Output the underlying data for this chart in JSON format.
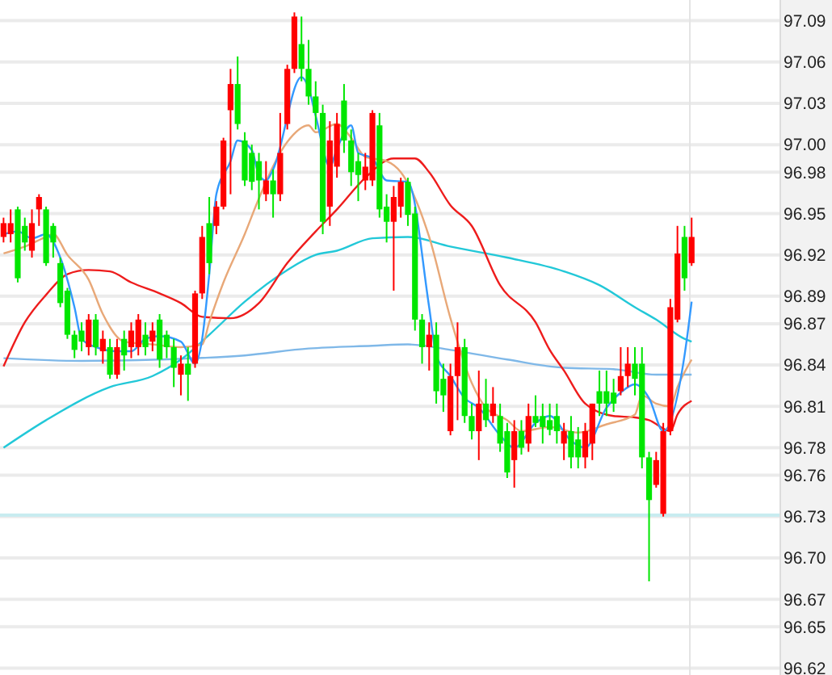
{
  "chart_data": {
    "type": "candlestick",
    "categories": [
      null,
      null,
      null,
      null,
      null,
      null,
      null,
      null,
      null,
      null,
      null,
      null,
      null,
      null,
      null,
      null,
      null,
      null,
      null,
      null,
      null,
      null,
      null,
      null,
      null,
      null,
      null,
      null,
      null,
      null,
      null,
      null,
      null,
      null,
      null,
      null,
      null,
      null,
      null,
      null,
      null,
      null,
      null,
      null,
      null,
      null,
      null,
      null,
      null,
      null,
      null,
      null,
      null,
      null,
      null,
      null,
      null,
      null,
      null,
      null,
      null,
      null,
      null,
      null,
      null,
      null,
      null,
      null,
      null,
      null,
      null,
      null,
      null,
      null,
      null,
      null,
      null,
      null,
      null,
      null,
      null,
      null,
      null,
      null,
      null,
      null,
      null,
      null,
      null,
      null,
      null,
      null,
      null,
      null,
      null,
      null,
      null,
      null,
      null,
      null,
      null,
      null,
      null,
      null,
      null,
      null,
      null,
      null,
      null,
      null
    ],
    "ohlc": [
      [
        96.933,
        96.947,
        96.929,
        96.943
      ],
      [
        96.935,
        96.953,
        96.929,
        96.943
      ],
      [
        96.953,
        96.955,
        96.9,
        96.903
      ],
      [
        96.941,
        96.947,
        96.923,
        96.929
      ],
      [
        96.923,
        96.953,
        96.918,
        96.943
      ],
      [
        96.953,
        96.964,
        96.941,
        96.962
      ],
      [
        96.953,
        96.955,
        96.912,
        96.914
      ],
      [
        96.941,
        96.943,
        96.918,
        96.929
      ],
      [
        96.914,
        96.918,
        96.882,
        96.885
      ],
      [
        96.894,
        96.896,
        96.859,
        96.862
      ],
      [
        96.862,
        96.865,
        96.845,
        96.851
      ],
      [
        96.865,
        96.871,
        96.85,
        96.857
      ],
      [
        96.853,
        96.877,
        96.847,
        96.873
      ],
      [
        96.873,
        96.877,
        96.847,
        96.853
      ],
      [
        96.85,
        96.865,
        96.841,
        96.859
      ],
      [
        96.853,
        96.859,
        96.83,
        96.833
      ],
      [
        96.833,
        96.859,
        96.83,
        96.853
      ],
      [
        96.859,
        96.865,
        96.836,
        96.847
      ],
      [
        96.853,
        96.871,
        96.845,
        96.865
      ],
      [
        96.853,
        96.877,
        96.847,
        96.873
      ],
      [
        96.862,
        96.871,
        96.847,
        96.853
      ],
      [
        96.857,
        96.871,
        96.85,
        96.865
      ],
      [
        96.873,
        96.877,
        96.838,
        96.844
      ],
      [
        96.862,
        96.865,
        96.845,
        96.853
      ],
      [
        96.853,
        96.859,
        96.824,
        96.838
      ],
      [
        96.833,
        96.847,
        96.818,
        96.841
      ],
      [
        96.841,
        96.853,
        96.814,
        96.833
      ],
      [
        96.841,
        96.894,
        96.838,
        96.892
      ],
      [
        96.892,
        96.941,
        96.888,
        96.933
      ],
      [
        96.943,
        96.962,
        96.906,
        96.914
      ],
      [
        96.941,
        96.959,
        96.935,
        96.955
      ],
      [
        96.955,
        97.005,
        96.953,
        97.003
      ],
      [
        97.025,
        97.055,
        96.964,
        97.044
      ],
      [
        97.044,
        97.064,
        97.011,
        97.015
      ],
      [
        97.003,
        97.009,
        96.97,
        96.974
      ],
      [
        96.994,
        97.0,
        96.967,
        96.973
      ],
      [
        96.988,
        96.994,
        96.953,
        96.974
      ],
      [
        96.964,
        96.988,
        96.959,
        96.974
      ],
      [
        96.974,
        96.982,
        96.947,
        96.964
      ],
      [
        96.964,
        97.023,
        96.959,
        96.994
      ],
      [
        97.015,
        97.058,
        97.011,
        97.055
      ],
      [
        97.055,
        97.096,
        97.052,
        97.093
      ],
      [
        97.073,
        97.093,
        97.046,
        97.055
      ],
      [
        97.055,
        97.076,
        97.029,
        97.035
      ],
      [
        97.035,
        97.046,
        97.011,
        97.023
      ],
      [
        97.023,
        97.029,
        96.935,
        96.944
      ],
      [
        96.955,
        97.017,
        96.941,
        97.003
      ],
      [
        96.984,
        97.023,
        96.976,
        97.015
      ],
      [
        97.032,
        97.044,
        96.994,
        97.003
      ],
      [
        97.003,
        97.011,
        96.97,
        96.98
      ],
      [
        96.988,
        96.994,
        96.959,
        96.978
      ],
      [
        96.974,
        96.994,
        96.967,
        96.984
      ],
      [
        96.974,
        97.025,
        96.97,
        97.023
      ],
      [
        97.014,
        97.023,
        96.947,
        96.953
      ],
      [
        96.955,
        96.964,
        96.929,
        96.944
      ],
      [
        96.944,
        96.97,
        96.894,
        96.962
      ],
      [
        96.955,
        96.976,
        96.947,
        96.973
      ],
      [
        96.973,
        96.976,
        96.941,
        96.949
      ],
      [
        96.95,
        96.955,
        96.865,
        96.873
      ],
      [
        96.873,
        96.877,
        96.841,
        96.853
      ],
      [
        96.853,
        96.871,
        96.836,
        96.862
      ],
      [
        96.862,
        96.871,
        96.812,
        96.821
      ],
      [
        96.83,
        96.841,
        96.806,
        96.818
      ],
      [
        96.792,
        96.841,
        96.789,
        96.832
      ],
      [
        96.832,
        96.871,
        96.8,
        96.853
      ],
      [
        96.853,
        96.859,
        96.798,
        96.803
      ],
      [
        96.803,
        96.812,
        96.786,
        96.792
      ],
      [
        96.792,
        96.836,
        96.771,
        96.812
      ],
      [
        96.812,
        96.83,
        96.795,
        96.8
      ],
      [
        96.803,
        96.824,
        96.798,
        96.812
      ],
      [
        96.803,
        96.812,
        96.777,
        96.783
      ],
      [
        96.792,
        96.798,
        96.758,
        96.762
      ],
      [
        96.771,
        96.8,
        96.751,
        96.792
      ],
      [
        96.792,
        96.8,
        96.775,
        96.78
      ],
      [
        96.783,
        96.812,
        96.777,
        96.803
      ],
      [
        96.803,
        96.818,
        96.795,
        96.798
      ],
      [
        96.803,
        96.812,
        96.783,
        96.795
      ],
      [
        96.8,
        96.812,
        96.789,
        96.793
      ],
      [
        96.803,
        96.812,
        96.783,
        96.792
      ],
      [
        96.783,
        96.798,
        96.771,
        96.792
      ],
      [
        96.792,
        96.803,
        96.765,
        96.773
      ],
      [
        96.786,
        96.795,
        96.765,
        96.773
      ],
      [
        96.773,
        96.798,
        96.765,
        96.792
      ],
      [
        96.783,
        96.812,
        96.771,
        96.812
      ],
      [
        96.821,
        96.836,
        96.803,
        96.812
      ],
      [
        96.821,
        96.836,
        96.803,
        96.812
      ],
      [
        96.82,
        96.83,
        96.806,
        96.812
      ],
      [
        96.821,
        96.853,
        96.818,
        96.832
      ],
      [
        96.832,
        96.853,
        96.824,
        96.841
      ],
      [
        96.841,
        96.853,
        96.818,
        96.83
      ],
      [
        96.841,
        96.853,
        96.765,
        96.773
      ],
      [
        96.773,
        96.777,
        96.683,
        96.742
      ],
      [
        96.753,
        96.777,
        96.751,
        96.771
      ],
      [
        96.732,
        96.798,
        96.73,
        96.792
      ],
      [
        96.792,
        96.888,
        96.789,
        96.882
      ],
      [
        96.873,
        96.941,
        96.871,
        96.921
      ],
      [
        96.933,
        96.941,
        96.894,
        96.903
      ],
      [
        96.914,
        96.947,
        96.912,
        96.933
      ],
      null,
      null,
      null,
      null,
      null,
      null,
      null,
      null,
      null,
      null,
      null,
      null
    ],
    "colors": [
      "#ff0000",
      "#ff0000",
      "#00e600",
      "#00e600",
      "#ff0000",
      "#ff0000",
      "#00e600",
      "#00e600",
      "#00e600",
      "#00e600",
      "#00e600",
      "#00e600",
      "#ff0000",
      "#00e600",
      "#ff0000",
      "#00e600",
      "#ff0000",
      "#00e600",
      "#ff0000",
      "#ff0000",
      "#00e600",
      "#ff0000",
      "#00e600",
      "#00e600",
      "#00e600",
      "#ff0000",
      "#00e600",
      "#ff0000",
      "#ff0000",
      "#00e600",
      "#ff0000",
      "#ff0000",
      "#ff0000",
      "#00e600",
      "#00e600",
      "#00e600",
      "#00e600",
      "#ff0000",
      "#00e600",
      "#ff0000",
      "#ff0000",
      "#ff0000",
      "#00e600",
      "#00e600",
      "#00e600",
      "#00e600",
      "#ff0000",
      "#ff0000",
      "#00e600",
      "#00e600",
      "#00e600",
      "#ff0000",
      "#ff0000",
      "#00e600",
      "#00e600",
      "#ff0000",
      "#ff0000",
      "#00e600",
      "#00e600",
      "#00e600",
      "#ff0000",
      "#00e600",
      "#00e600",
      "#ff0000",
      "#ff0000",
      "#00e600",
      "#00e600",
      "#ff0000",
      "#00e600",
      "#ff0000",
      "#00e600",
      "#00e600",
      "#ff0000",
      "#00e600",
      "#ff0000",
      "#00e600",
      "#00e600",
      "#00e600",
      "#00e600",
      "#ff0000",
      "#00e600",
      "#00e600",
      "#ff0000",
      "#ff0000",
      "#00e600",
      "#00e600",
      "#00e600",
      "#ff0000",
      "#ff0000",
      "#00e600",
      "#00e600",
      "#00e600",
      "#ff0000",
      "#ff0000",
      "#ff0000",
      "#ff0000",
      "#00e600",
      "#ff0000",
      null,
      null,
      null,
      null,
      null,
      null,
      null,
      null,
      null,
      null,
      null,
      null
    ],
    "series": [
      {
        "type": "line",
        "color": "#7fb8e8",
        "values": [
          96.845,
          null,
          null,
          null,
          null,
          null,
          null,
          null,
          null,
          null,
          null,
          96.843,
          null,
          null,
          null,
          null,
          null,
          null,
          null,
          null,
          null,
          null,
          96.844,
          null,
          null,
          null,
          null,
          null,
          null,
          null,
          null,
          null,
          null,
          null,
          96.847,
          null,
          null,
          null,
          null,
          null,
          null,
          null,
          null,
          96.852,
          null,
          null,
          null,
          null,
          null,
          null,
          null,
          null,
          96.854,
          null,
          null,
          null,
          null,
          96.855,
          null,
          null,
          null,
          null,
          null,
          96.851,
          null,
          null,
          null,
          null,
          null,
          null,
          null,
          96.844,
          null,
          null,
          null,
          null,
          null,
          null,
          null,
          96.838,
          null,
          null,
          null,
          null,
          null,
          null,
          96.837,
          null,
          null,
          null,
          null,
          null,
          96.833,
          null,
          null,
          null,
          null,
          96.833,
          null,
          null,
          null,
          null,
          null,
          null,
          null,
          null,
          null,
          null,
          null,
          null
        ]
      },
      {
        "type": "line",
        "color": "#22c8d8",
        "values": [
          96.78,
          null,
          null,
          null,
          null,
          null,
          96.8,
          null,
          null,
          null,
          null,
          null,
          null,
          null,
          null,
          96.824,
          null,
          null,
          null,
          null,
          null,
          96.832,
          null,
          null,
          null,
          96.844,
          null,
          null,
          null,
          96.862,
          null,
          null,
          null,
          null,
          96.886,
          null,
          null,
          null,
          null,
          null,
          96.909,
          null,
          null,
          null,
          96.92,
          null,
          null,
          96.923,
          null,
          null,
          null,
          null,
          96.932,
          null,
          null,
          null,
          null,
          96.933,
          null,
          null,
          null,
          null,
          null,
          96.926,
          null,
          null,
          null,
          null,
          null,
          null,
          null,
          96.918,
          null,
          null,
          null,
          null,
          null,
          null,
          null,
          96.908,
          null,
          null,
          null,
          null,
          96.898,
          null,
          null,
          null,
          null,
          96.882,
          null,
          null,
          96.873,
          null,
          null,
          null,
          96.859,
          96.857,
          null,
          null,
          null,
          null,
          null,
          null,
          null,
          null,
          null,
          null,
          null,
          null
        ]
      },
      {
        "type": "line",
        "color": "#ee1c1c",
        "values": [
          96.839,
          null,
          null,
          96.871,
          null,
          null,
          96.891,
          null,
          null,
          96.906,
          null,
          null,
          96.909,
          null,
          null,
          96.908,
          null,
          null,
          96.9,
          null,
          null,
          null,
          96.892,
          null,
          null,
          96.885,
          null,
          null,
          96.875,
          null,
          null,
          null,
          96.874,
          null,
          null,
          null,
          96.885,
          null,
          null,
          null,
          96.914,
          null,
          null,
          null,
          96.937,
          null,
          null,
          96.953,
          null,
          null,
          null,
          96.976,
          null,
          null,
          null,
          96.99,
          null,
          null,
          96.99,
          null,
          96.98,
          null,
          null,
          96.956,
          null,
          null,
          96.941,
          null,
          null,
          null,
          96.898,
          null,
          null,
          null,
          null,
          96.871,
          null,
          96.851,
          null,
          96.836,
          null,
          null,
          96.812,
          null,
          null,
          null,
          96.803,
          null,
          null,
          96.802,
          null,
          96.8,
          null,
          null,
          96.792,
          96.804,
          null,
          96.814,
          null,
          null,
          null,
          null,
          null,
          null,
          null,
          null,
          null,
          null,
          null,
          null
        ]
      },
      {
        "type": "line",
        "color": "#e8a878",
        "values": [
          96.921,
          null,
          null,
          96.926,
          null,
          null,
          96.933,
          96.935,
          null,
          96.92,
          null,
          null,
          96.902,
          null,
          96.877,
          null,
          null,
          96.857,
          null,
          null,
          null,
          96.855,
          null,
          null,
          null,
          96.853,
          null,
          null,
          96.855,
          96.871,
          null,
          96.9,
          null,
          null,
          96.935,
          null,
          96.961,
          null,
          null,
          null,
          97.002,
          null,
          null,
          97.014,
          97.009,
          null,
          null,
          97.015,
          null,
          97.005,
          null,
          96.991,
          null,
          null,
          96.988,
          null,
          96.98,
          null,
          null,
          null,
          96.933,
          null,
          null,
          96.874,
          null,
          null,
          96.827,
          null,
          96.809,
          null,
          null,
          96.8,
          null,
          96.792,
          null,
          null,
          null,
          96.795,
          null,
          null,
          null,
          96.791,
          null,
          null,
          null,
          96.797,
          null,
          null,
          null,
          96.804,
          96.818,
          null,
          96.812,
          null,
          96.81,
          96.824,
          null,
          96.844,
          null,
          null,
          null,
          null,
          null,
          null,
          null,
          null,
          null,
          null,
          null,
          null
        ]
      },
      {
        "type": "line",
        "color": "#3399ff",
        "values": [
          96.935,
          null,
          96.937,
          null,
          96.932,
          null,
          96.935,
          null,
          96.918,
          null,
          96.882,
          96.859,
          null,
          96.853,
          null,
          null,
          96.85,
          null,
          96.85,
          null,
          96.859,
          null,
          96.861,
          null,
          null,
          96.857,
          null,
          96.841,
          96.859,
          96.906,
          96.964,
          null,
          96.988,
          97.003,
          null,
          96.996,
          96.978,
          96.974,
          96.982,
          null,
          null,
          null,
          97.049,
          97.041,
          97.021,
          null,
          96.984,
          96.997,
          null,
          97.014,
          96.994,
          null,
          96.99,
          null,
          96.974,
          null,
          null,
          96.973,
          null,
          null,
          96.882,
          96.847,
          null,
          96.832,
          null,
          96.816,
          null,
          96.809,
          null,
          null,
          96.789,
          null,
          96.78,
          null,
          null,
          96.798,
          null,
          96.803,
          null,
          null,
          96.785,
          null,
          96.78,
          null,
          null,
          96.809,
          null,
          96.82,
          null,
          96.826,
          null,
          96.816,
          null,
          96.792,
          null,
          null,
          96.847,
          96.886,
          null,
          null,
          null,
          null,
          null,
          null,
          null,
          null,
          null,
          null,
          null,
          null
        ]
      }
    ],
    "ref_lines": [
      {
        "axis": "y",
        "value": 96.731,
        "color": "#c8ecf0"
      }
    ],
    "ylim": [
      96.615,
      97.105
    ],
    "yticks": [
      97.09,
      97.06,
      97.03,
      {
        "value": 97.0,
        "label": "97.00"
      },
      96.98,
      96.95,
      96.92,
      96.89,
      96.87,
      96.84,
      96.81,
      96.78,
      96.76,
      96.73,
      {
        "value": 96.7,
        "label": "96.70"
      },
      96.67,
      96.65,
      96.62
    ],
    "grid": "y"
  }
}
